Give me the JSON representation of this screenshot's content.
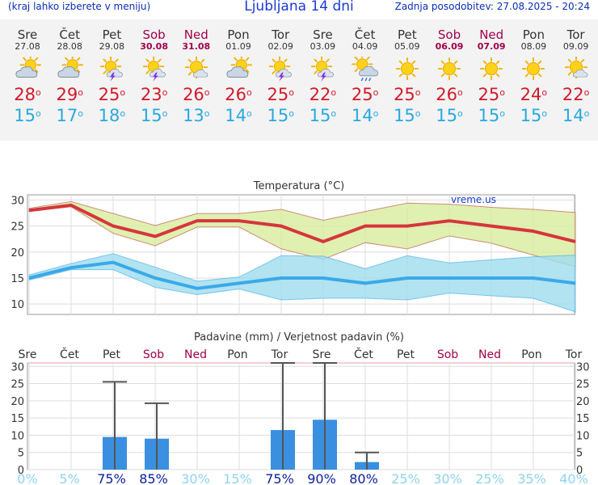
{
  "header": {
    "menu_hint": "(kraj lahko izberete v meniju)",
    "title": "Ljubljana 14 dni",
    "updated": "Zadnja posodobitev: 27.08.2025 - 20:24"
  },
  "days": [
    {
      "day": "Sre",
      "date": "27.08",
      "max": "28",
      "min": "15",
      "icon": "sun-cloud-icon",
      "weekend": false
    },
    {
      "day": "Čet",
      "date": "28.08",
      "max": "29",
      "min": "17",
      "icon": "sun-cloud-icon",
      "weekend": false
    },
    {
      "day": "Pet",
      "date": "29.08",
      "max": "25",
      "min": "18",
      "icon": "sun-thunder-icon",
      "weekend": false
    },
    {
      "day": "Sob",
      "date": "30.08",
      "max": "23",
      "min": "15",
      "icon": "sun-thunder-icon",
      "weekend": true
    },
    {
      "day": "Ned",
      "date": "31.08",
      "max": "26",
      "min": "13",
      "icon": "sun-light-cloud-icon",
      "weekend": true
    },
    {
      "day": "Pon",
      "date": "01.09",
      "max": "26",
      "min": "14",
      "icon": "sun-cloud-icon",
      "weekend": false
    },
    {
      "day": "Tor",
      "date": "02.09",
      "max": "25",
      "min": "15",
      "icon": "sun-thunder-icon",
      "weekend": false
    },
    {
      "day": "Sre",
      "date": "03.09",
      "max": "22",
      "min": "15",
      "icon": "sun-thunder-icon",
      "weekend": false
    },
    {
      "day": "Čet",
      "date": "04.09",
      "max": "25",
      "min": "14",
      "icon": "sun-rain-icon",
      "weekend": false
    },
    {
      "day": "Pet",
      "date": "05.09",
      "max": "25",
      "min": "15",
      "icon": "sun-icon",
      "weekend": false
    },
    {
      "day": "Sob",
      "date": "06.09",
      "max": "26",
      "min": "15",
      "icon": "sun-icon",
      "weekend": true
    },
    {
      "day": "Ned",
      "date": "07.09",
      "max": "25",
      "min": "15",
      "icon": "sun-icon",
      "weekend": true
    },
    {
      "day": "Pon",
      "date": "08.09",
      "max": "24",
      "min": "15",
      "icon": "sun-icon",
      "weekend": false
    },
    {
      "day": "Tor",
      "date": "09.09",
      "max": "22",
      "min": "14",
      "icon": "sun-light-cloud-icon",
      "weekend": false
    }
  ],
  "chart_data": [
    {
      "type": "line",
      "title": "Temperatura (°C)",
      "watermark": "vreme.us",
      "ylim": [
        8,
        31
      ],
      "yticks": [
        10,
        15,
        20,
        25,
        30
      ],
      "grid": true,
      "series": [
        {
          "values": [
            28,
            29,
            25,
            23,
            26,
            26,
            25,
            22,
            25,
            25,
            26,
            25,
            24,
            22
          ],
          "color": "#d5363c",
          "band_low": [
            27.8,
            28.7,
            23.6,
            21.2,
            24.8,
            24.8,
            20.6,
            18.6,
            21.8,
            20.6,
            23.1,
            21.7,
            19.4,
            17.2
          ],
          "band_high": [
            28.4,
            29.7,
            27.4,
            25.1,
            27.4,
            27.4,
            28.2,
            26.1,
            27.8,
            29.4,
            29.2,
            28.6,
            28.2,
            27.6
          ],
          "band_color": "#d8ec9c"
        },
        {
          "values": [
            15,
            17,
            18,
            15,
            13,
            14,
            15,
            15,
            14,
            15,
            15,
            15,
            15,
            14
          ],
          "color": "#3aa9e8",
          "band_low": [
            14.6,
            16.6,
            16.6,
            13.2,
            11.8,
            12.9,
            10.8,
            11.1,
            11.1,
            10.8,
            12.1,
            11.6,
            11.1,
            8.5
          ],
          "band_high": [
            15.6,
            17.8,
            19.7,
            17.1,
            14.4,
            15.2,
            19.3,
            19.2,
            16.8,
            19.3,
            17.9,
            18.5,
            19.1,
            19.4
          ],
          "band_color": "#9fdced"
        }
      ]
    },
    {
      "type": "bar",
      "title": "Padavine (mm) / Verjetnost padavin (%)",
      "categories": [
        "Sre",
        "Čet",
        "Pet",
        "Sob",
        "Ned",
        "Pon",
        "Tor",
        "Sre",
        "Čet",
        "Pet",
        "Sob",
        "Ned",
        "Pon",
        "Tor"
      ],
      "weekend": [
        false,
        false,
        false,
        true,
        true,
        false,
        false,
        false,
        false,
        false,
        true,
        true,
        false,
        false
      ],
      "values": [
        0,
        0,
        9.5,
        9,
        0,
        0,
        11.5,
        14.5,
        2.2,
        0,
        0,
        0,
        0,
        0
      ],
      "error_max": [
        0,
        0,
        25.5,
        19.3,
        0,
        0,
        31,
        31,
        5,
        0,
        0,
        0,
        0,
        0
      ],
      "probability": [
        "0%",
        "5%",
        "75%",
        "85%",
        "30%",
        "15%",
        "75%",
        "90%",
        "80%",
        "25%",
        "30%",
        "25%",
        "35%",
        "40%"
      ],
      "probability_high": [
        false,
        false,
        true,
        true,
        false,
        false,
        true,
        true,
        true,
        false,
        false,
        false,
        false,
        false
      ],
      "ylim": [
        0,
        31
      ],
      "yticks": [
        0,
        5,
        10,
        15,
        20,
        25,
        30
      ],
      "bar_color": "#3a8fe0",
      "grid": true
    }
  ]
}
